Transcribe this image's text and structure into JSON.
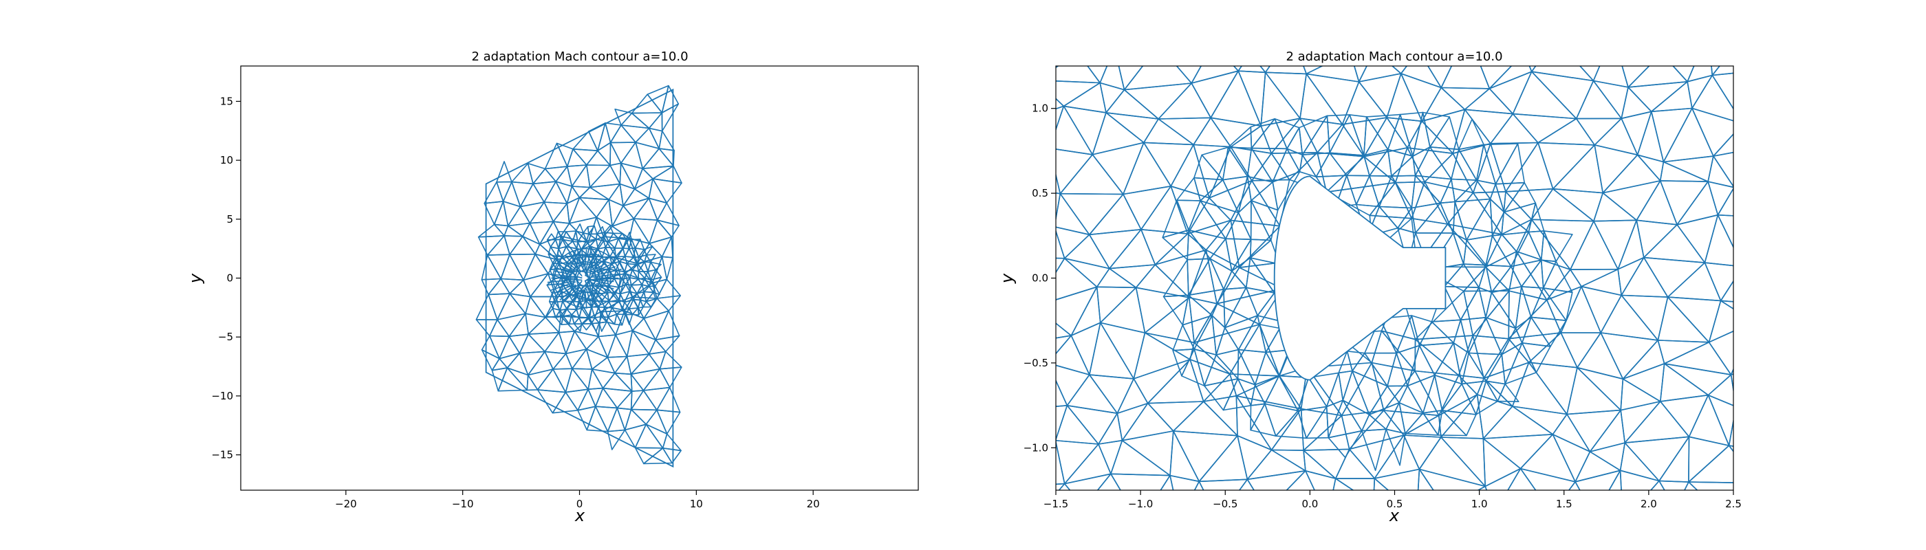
{
  "colors": {
    "mesh": "#1f77b4",
    "axes": "#000000",
    "background": "#ffffff"
  },
  "chart_data": [
    {
      "type": "mesh",
      "title": "2 adaptation Mach contour a=10.0",
      "xlabel": "x",
      "ylabel": "y",
      "xlim": [
        -29,
        29
      ],
      "ylim": [
        -18,
        18
      ],
      "xticks": [
        -20,
        -10,
        0,
        10,
        20
      ],
      "yticks": [
        -15,
        -10,
        -5,
        0,
        5,
        10,
        15
      ],
      "xtick_labels": [
        "−20",
        "−10",
        "0",
        "10",
        "20"
      ],
      "ytick_labels": [
        "−15",
        "−10",
        "−5",
        "0",
        "5",
        "10",
        "15"
      ],
      "domain_outline": [
        [
          -8,
          8
        ],
        [
          8,
          16
        ],
        [
          8,
          -16
        ],
        [
          -8,
          -8
        ]
      ],
      "body_center": [
        0.4,
        0
      ]
    },
    {
      "type": "mesh",
      "title": "2 adaptation Mach contour a=10.0",
      "xlabel": "x",
      "ylabel": "y",
      "xlim": [
        -1.5,
        2.5
      ],
      "ylim": [
        -1.25,
        1.25
      ],
      "xticks": [
        -1.5,
        -1.0,
        -0.5,
        0.0,
        0.5,
        1.0,
        1.5,
        2.0,
        2.5
      ],
      "yticks": [
        -1.0,
        -0.5,
        0.0,
        0.5,
        1.0
      ],
      "xtick_labels": [
        "−1.5",
        "−1.0",
        "−0.5",
        "0.0",
        "0.5",
        "1.0",
        "1.5",
        "2.0",
        "2.5"
      ],
      "ytick_labels": [
        "−1.0",
        "−0.5",
        "0.0",
        "0.5",
        "1.0"
      ],
      "body_outline": [
        [
          0.0,
          0.6
        ],
        [
          0.55,
          0.18
        ],
        [
          0.8,
          0.18
        ],
        [
          0.8,
          -0.18
        ],
        [
          0.55,
          -0.18
        ],
        [
          0.0,
          -0.6
        ]
      ]
    }
  ]
}
